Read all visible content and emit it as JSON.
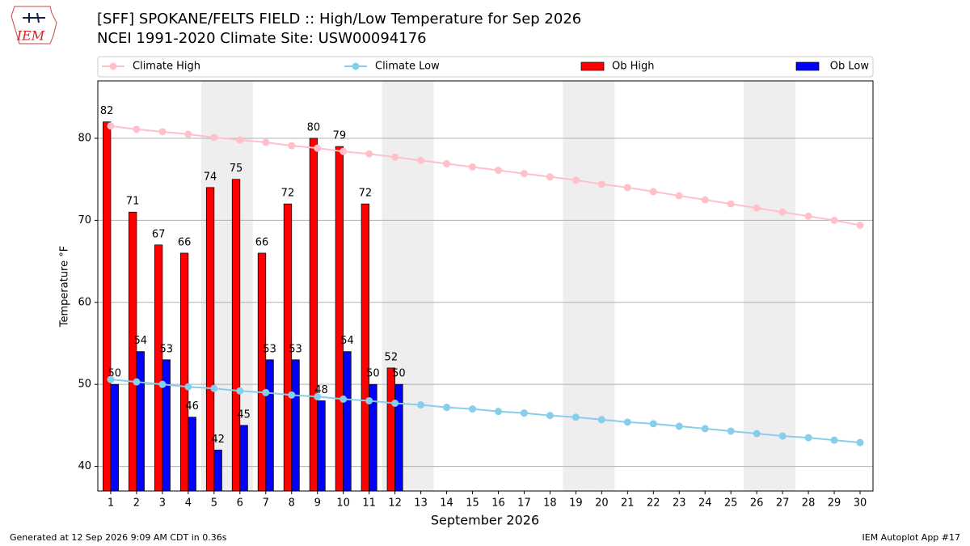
{
  "chart_data": {
    "type": "bar",
    "logo": "IEM",
    "title": "[SFF] SPOKANE/FELTS FIELD :: High/Low Temperature for Sep 2026",
    "subtitle": "NCEI 1991-2020 Climate Site: USW00094176",
    "xlabel": "September 2026",
    "ylabel": "Temperature °F",
    "footer_left": "Generated at 12 Sep 2026 9:09 AM CDT in 0.36s",
    "footer_right": "IEM Autoplot App #17",
    "x": [
      1,
      2,
      3,
      4,
      5,
      6,
      7,
      8,
      9,
      10,
      11,
      12,
      13,
      14,
      15,
      16,
      17,
      18,
      19,
      20,
      21,
      22,
      23,
      24,
      25,
      26,
      27,
      28,
      29,
      30
    ],
    "xlim": [
      0.5,
      30.5
    ],
    "xticks": [
      1,
      2,
      3,
      4,
      5,
      6,
      7,
      8,
      9,
      10,
      11,
      12,
      13,
      14,
      15,
      16,
      17,
      18,
      19,
      20,
      21,
      22,
      23,
      24,
      25,
      26,
      27,
      28,
      29,
      30
    ],
    "ylim": [
      37,
      87
    ],
    "yticks": [
      40,
      50,
      60,
      70,
      80
    ],
    "grid": true,
    "shaded_ranges": [
      [
        4.5,
        6.5
      ],
      [
        11.5,
        13.5
      ],
      [
        18.5,
        20.5
      ],
      [
        25.5,
        27.5
      ]
    ],
    "shade_color": "#eeeeee",
    "series": [
      {
        "name": "Climate High",
        "kind": "line",
        "color": "#ffc0cb",
        "values": [
          81.5,
          81.1,
          80.8,
          80.5,
          80.1,
          79.8,
          79.5,
          79.1,
          78.8,
          78.4,
          78.1,
          77.7,
          77.3,
          76.9,
          76.5,
          76.1,
          75.7,
          75.3,
          74.9,
          74.4,
          74.0,
          73.5,
          73.0,
          72.5,
          72.0,
          71.5,
          71.0,
          70.5,
          70.0,
          69.4
        ]
      },
      {
        "name": "Climate Low",
        "kind": "line",
        "color": "#87ceeb",
        "values": [
          50.6,
          50.3,
          50.0,
          49.7,
          49.5,
          49.2,
          49.0,
          48.7,
          48.5,
          48.2,
          48.0,
          47.7,
          47.5,
          47.2,
          47.0,
          46.7,
          46.5,
          46.2,
          46.0,
          45.7,
          45.4,
          45.2,
          44.9,
          44.6,
          44.3,
          44.0,
          43.7,
          43.5,
          43.2,
          42.9
        ]
      },
      {
        "name": "Ob High",
        "kind": "bar",
        "offset": -0.3,
        "width": 0.3,
        "color": "#ff0000",
        "values": [
          82,
          71,
          67,
          66,
          74,
          75,
          66,
          72,
          80,
          79,
          72,
          52,
          null,
          null,
          null,
          null,
          null,
          null,
          null,
          null,
          null,
          null,
          null,
          null,
          null,
          null,
          null,
          null,
          null,
          null
        ]
      },
      {
        "name": "Ob Low",
        "kind": "bar",
        "offset": 0,
        "width": 0.3,
        "color": "#0000ff",
        "values": [
          50,
          54,
          53,
          46,
          42,
          45,
          53,
          53,
          48,
          54,
          50,
          50,
          null,
          null,
          null,
          null,
          null,
          null,
          null,
          null,
          null,
          null,
          null,
          null,
          null,
          null,
          null,
          null,
          null,
          null
        ]
      }
    ]
  }
}
